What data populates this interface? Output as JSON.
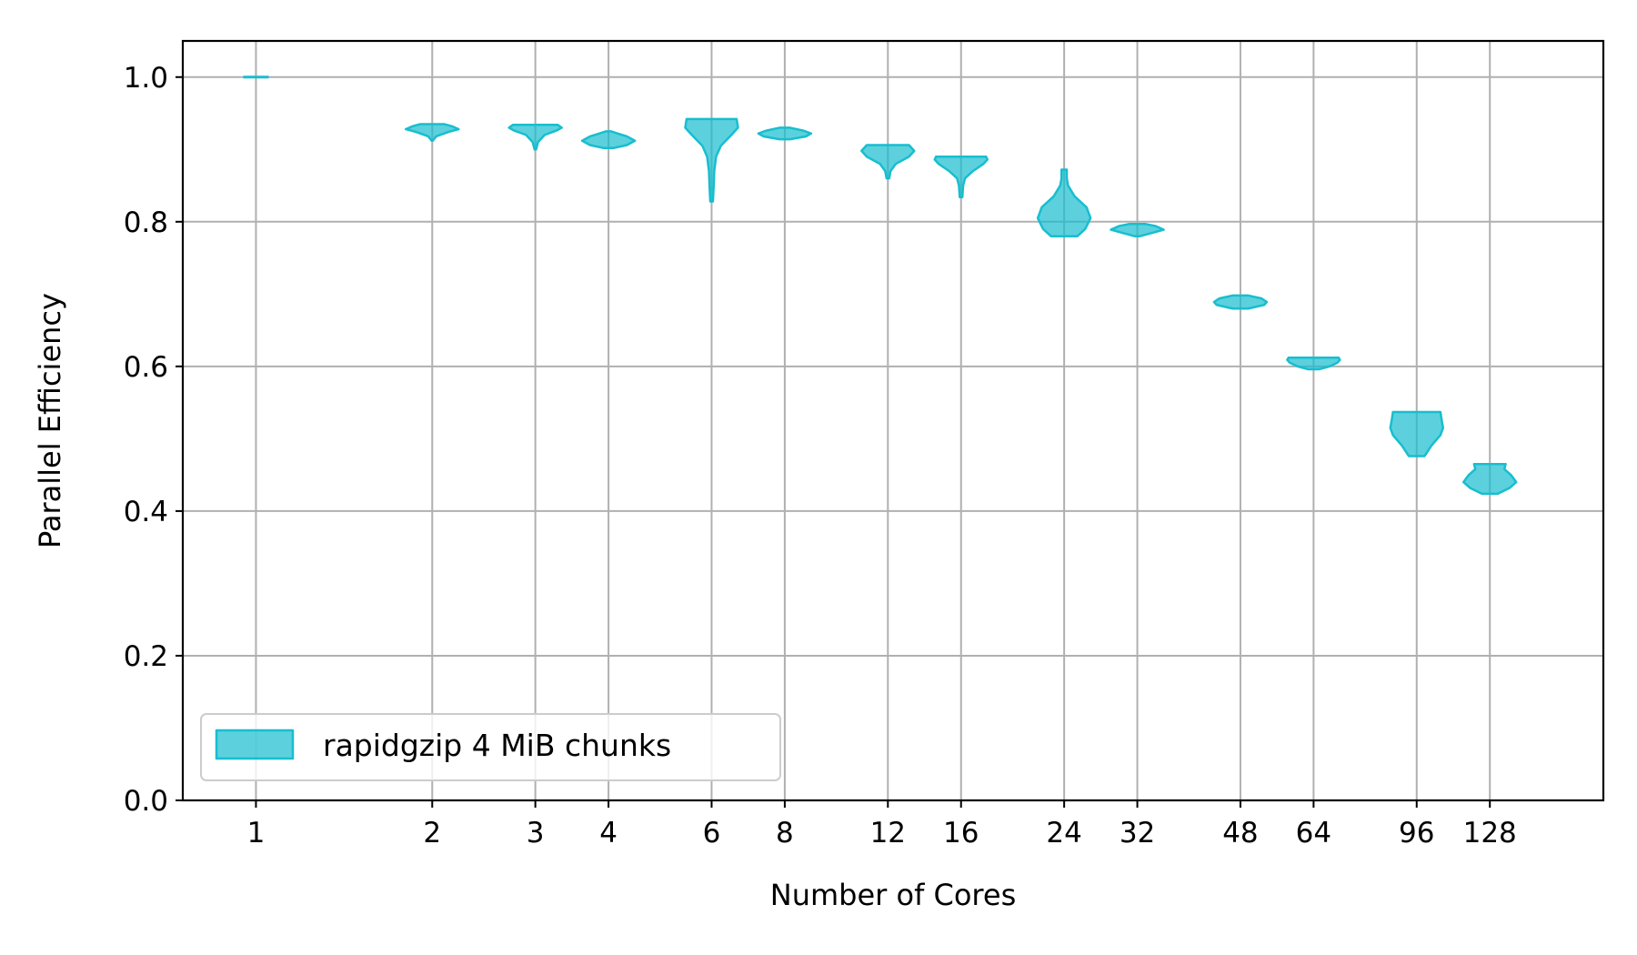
{
  "chart_data": {
    "type": "violin",
    "xlabel": "Number of Cores",
    "ylabel": "Parallel Efficiency",
    "x_scale": "log2",
    "xlim": [
      0.75,
      200
    ],
    "ylim": [
      0.0,
      1.05
    ],
    "x_ticks": [
      1,
      2,
      3,
      4,
      6,
      8,
      12,
      16,
      24,
      32,
      48,
      64,
      96,
      128
    ],
    "x_tick_labels": [
      "1",
      "2",
      "3",
      "4",
      "6",
      "8",
      "12",
      "16",
      "24",
      "32",
      "48",
      "64",
      "96",
      "128"
    ],
    "y_ticks": [
      0.0,
      0.2,
      0.4,
      0.6,
      0.8,
      1.0
    ],
    "y_tick_labels": [
      "0.0",
      "0.2",
      "0.4",
      "0.6",
      "0.8",
      "1.0"
    ],
    "grid": true,
    "legend": {
      "position": "lower-left",
      "entries": [
        "rapidgzip 4 MiB chunks"
      ]
    },
    "color": "#17becf",
    "series": [
      {
        "name": "rapidgzip 4 MiB chunks",
        "violins": [
          {
            "cores": 1,
            "min": 1.0,
            "max": 1.0,
            "profile": [
              [
                1.0,
                1.0
              ]
            ]
          },
          {
            "cores": 2,
            "min": 0.912,
            "max": 0.935,
            "profile": [
              [
                0.912,
                0.02
              ],
              [
                0.918,
                0.15
              ],
              [
                0.924,
                0.6
              ],
              [
                0.928,
                1.0
              ],
              [
                0.932,
                0.75
              ],
              [
                0.935,
                0.45
              ]
            ]
          },
          {
            "cores": 3,
            "min": 0.9,
            "max": 0.934,
            "profile": [
              [
                0.9,
                0.03
              ],
              [
                0.91,
                0.1
              ],
              [
                0.92,
                0.35
              ],
              [
                0.926,
                0.8
              ],
              [
                0.93,
                1.0
              ],
              [
                0.934,
                0.85
              ]
            ]
          },
          {
            "cores": 4,
            "min": 0.902,
            "max": 0.925,
            "profile": [
              [
                0.902,
                0.2
              ],
              [
                0.906,
                0.7
              ],
              [
                0.912,
                1.0
              ],
              [
                0.918,
                0.7
              ],
              [
                0.922,
                0.35
              ],
              [
                0.925,
                0.1
              ]
            ]
          },
          {
            "cores": 6,
            "min": 0.828,
            "max": 0.942,
            "profile": [
              [
                0.828,
                0.05
              ],
              [
                0.85,
                0.08
              ],
              [
                0.87,
                0.1
              ],
              [
                0.89,
                0.17
              ],
              [
                0.905,
                0.35
              ],
              [
                0.92,
                0.75
              ],
              [
                0.93,
                1.0
              ],
              [
                0.942,
                0.95
              ]
            ]
          },
          {
            "cores": 8,
            "min": 0.914,
            "max": 0.93,
            "profile": [
              [
                0.914,
                0.2
              ],
              [
                0.918,
                0.8
              ],
              [
                0.922,
                1.0
              ],
              [
                0.926,
                0.7
              ],
              [
                0.93,
                0.2
              ]
            ]
          },
          {
            "cores": 12,
            "min": 0.86,
            "max": 0.906,
            "profile": [
              [
                0.86,
                0.05
              ],
              [
                0.87,
                0.1
              ],
              [
                0.88,
                0.3
              ],
              [
                0.89,
                0.8
              ],
              [
                0.898,
                1.0
              ],
              [
                0.906,
                0.8
              ]
            ]
          },
          {
            "cores": 16,
            "min": 0.834,
            "max": 0.89,
            "profile": [
              [
                0.834,
                0.05
              ],
              [
                0.85,
                0.08
              ],
              [
                0.86,
                0.15
              ],
              [
                0.87,
                0.45
              ],
              [
                0.88,
                0.85
              ],
              [
                0.886,
                1.0
              ],
              [
                0.89,
                0.95
              ]
            ]
          },
          {
            "cores": 24,
            "min": 0.78,
            "max": 0.872,
            "profile": [
              [
                0.78,
                0.5
              ],
              [
                0.79,
                0.8
              ],
              [
                0.805,
                1.0
              ],
              [
                0.82,
                0.85
              ],
              [
                0.835,
                0.4
              ],
              [
                0.85,
                0.15
              ],
              [
                0.86,
                0.1
              ],
              [
                0.872,
                0.1
              ]
            ]
          },
          {
            "cores": 32,
            "min": 0.78,
            "max": 0.797,
            "profile": [
              [
                0.78,
                0.1
              ],
              [
                0.784,
                0.5
              ],
              [
                0.789,
                1.0
              ],
              [
                0.794,
                0.7
              ],
              [
                0.797,
                0.3
              ]
            ]
          },
          {
            "cores": 48,
            "min": 0.68,
            "max": 0.698,
            "profile": [
              [
                0.68,
                0.3
              ],
              [
                0.685,
                0.9
              ],
              [
                0.689,
                1.0
              ],
              [
                0.694,
                0.8
              ],
              [
                0.698,
                0.3
              ]
            ]
          },
          {
            "cores": 64,
            "min": 0.596,
            "max": 0.612,
            "profile": [
              [
                0.596,
                0.2
              ],
              [
                0.6,
                0.6
              ],
              [
                0.605,
                0.9
              ],
              [
                0.609,
                1.0
              ],
              [
                0.612,
                0.95
              ]
            ]
          },
          {
            "cores": 96,
            "min": 0.476,
            "max": 0.537,
            "profile": [
              [
                0.476,
                0.3
              ],
              [
                0.49,
                0.55
              ],
              [
                0.505,
                0.9
              ],
              [
                0.515,
                1.0
              ],
              [
                0.525,
                0.95
              ],
              [
                0.537,
                0.9
              ]
            ]
          },
          {
            "cores": 128,
            "min": 0.424,
            "max": 0.465,
            "profile": [
              [
                0.424,
                0.3
              ],
              [
                0.432,
                0.75
              ],
              [
                0.44,
                1.0
              ],
              [
                0.45,
                0.8
              ],
              [
                0.458,
                0.55
              ],
              [
                0.465,
                0.6
              ]
            ]
          }
        ]
      }
    ]
  }
}
